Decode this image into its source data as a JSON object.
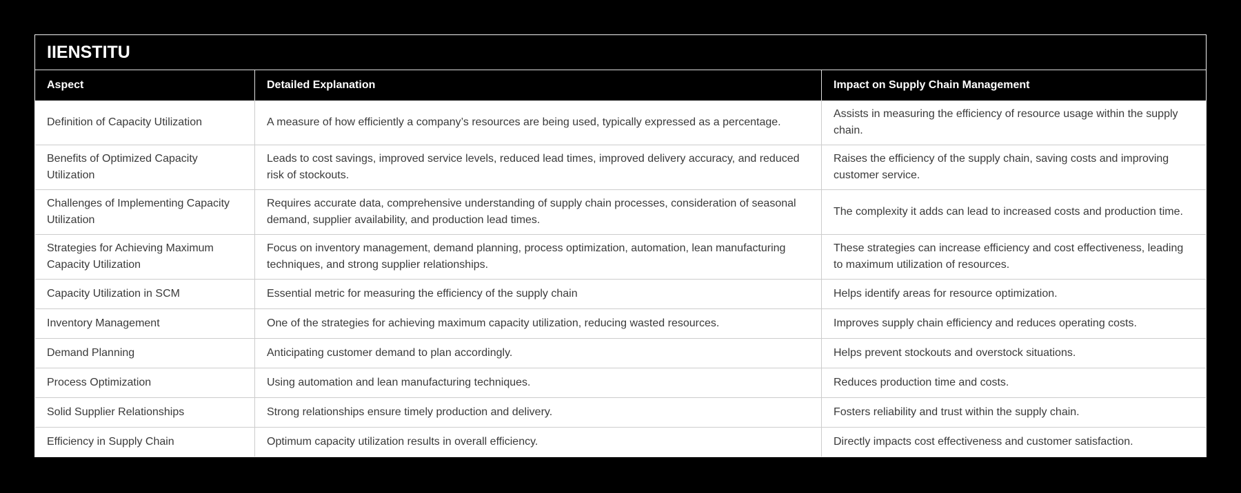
{
  "brand": {
    "title": "IIENSTITU"
  },
  "colors": {
    "bg": "#000000",
    "table_bg": "#ffffff",
    "header_bg": "#000000",
    "header_text": "#ffffff",
    "body_text": "#3a3a3a",
    "divider": "#cccccc",
    "frame": "#f2f2f2",
    "header_divider": "#e0e0e0"
  },
  "table": {
    "columns": [
      "Aspect",
      "Detailed Explanation",
      "Impact on Supply Chain Management"
    ],
    "rows": [
      {
        "aspect": "Definition of Capacity Utilization",
        "explanation": "A measure of how efficiently a company’s resources are being used, typically expressed as a percentage.",
        "impact": "Assists in measuring the efficiency of resource usage within the supply chain."
      },
      {
        "aspect": "Benefits of Optimized Capacity Utilization",
        "explanation": "Leads to cost savings, improved service levels, reduced lead times, improved delivery accuracy, and reduced risk of stockouts.",
        "impact": "Raises the efficiency of the supply chain, saving costs and improving customer service."
      },
      {
        "aspect": "Challenges of Implementing Capacity Utilization",
        "explanation": "Requires accurate data, comprehensive understanding of supply chain processes, consideration of seasonal demand, supplier availability, and production lead times.",
        "impact": "The complexity it adds can lead to increased costs and production time."
      },
      {
        "aspect": "Strategies for Achieving Maximum Capacity Utilization",
        "explanation": "Focus on inventory management, demand planning, process optimization, automation, lean manufacturing techniques, and strong supplier relationships.",
        "impact": "These strategies can increase efficiency and cost effectiveness, leading to maximum utilization of resources."
      },
      {
        "aspect": "Capacity Utilization in SCM",
        "explanation": "Essential metric for measuring the efficiency of the supply chain",
        "impact": "Helps identify areas for resource optimization."
      },
      {
        "aspect": "Inventory Management",
        "explanation": "One of the strategies for achieving maximum capacity utilization, reducing wasted resources.",
        "impact": "Improves supply chain efficiency and reduces operating costs."
      },
      {
        "aspect": "Demand Planning",
        "explanation": "Anticipating customer demand to plan accordingly.",
        "impact": "Helps prevent stockouts and overstock situations."
      },
      {
        "aspect": "Process Optimization",
        "explanation": "Using automation and lean manufacturing techniques.",
        "impact": "Reduces production time and costs."
      },
      {
        "aspect": "Solid Supplier Relationships",
        "explanation": "Strong relationships ensure timely production and delivery.",
        "impact": "Fosters reliability and trust within the supply chain."
      },
      {
        "aspect": "Efficiency in Supply Chain",
        "explanation": "Optimum capacity utilization results in overall efficiency.",
        "impact": "Directly impacts cost effectiveness and customer satisfaction."
      }
    ]
  }
}
